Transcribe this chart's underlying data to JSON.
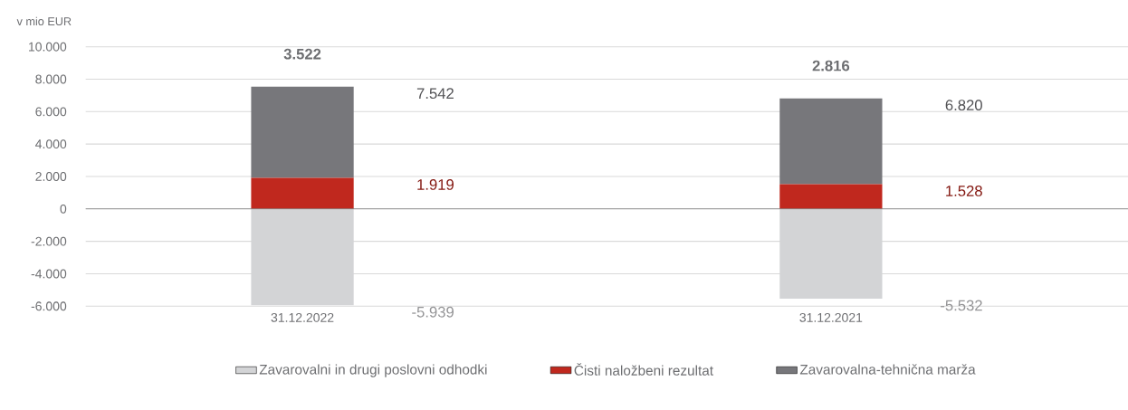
{
  "chart_data": {
    "type": "bar",
    "ylabel": "v mio EUR",
    "stacked": true,
    "categories": [
      "31.12.2022",
      "31.12.2021"
    ],
    "series": [
      {
        "name": "Zavarovalni in drugi poslovni odhodki",
        "color": "#d3d4d6",
        "values": [
          -5939,
          -5532
        ]
      },
      {
        "name": "Čisti naložbeni rezultat",
        "color": "#c0281e",
        "values": [
          1919,
          1528
        ]
      },
      {
        "name": "Zavarovalna-tehnična marža",
        "color": "#77777b",
        "values": [
          5623,
          5292
        ]
      }
    ],
    "ylim": [
      -6000,
      10000
    ],
    "yticks": [
      {
        "value": -6000,
        "label": "-6.000"
      },
      {
        "value": -4000,
        "label": "-4.000"
      },
      {
        "value": -2000,
        "label": "-2.000"
      },
      0,
      {
        "value": 2000,
        "label": "2.000"
      },
      {
        "value": 4000,
        "label": "4.000"
      },
      {
        "value": 6000,
        "label": "6.000"
      },
      {
        "value": 8000,
        "label": "8.000"
      },
      {
        "value": 10000,
        "label": "10.000"
      }
    ],
    "grid": "y",
    "legend": "bottom",
    "ref_lines": [
      {
        "axis": "y",
        "value": 0,
        "color": "#777777"
      }
    ],
    "annotations": [
      "-5.939",
      "-5.532",
      "1.919",
      "1.528",
      "7.542",
      "6.820",
      "**3.522**",
      "**2.816**"
    ]
  }
}
